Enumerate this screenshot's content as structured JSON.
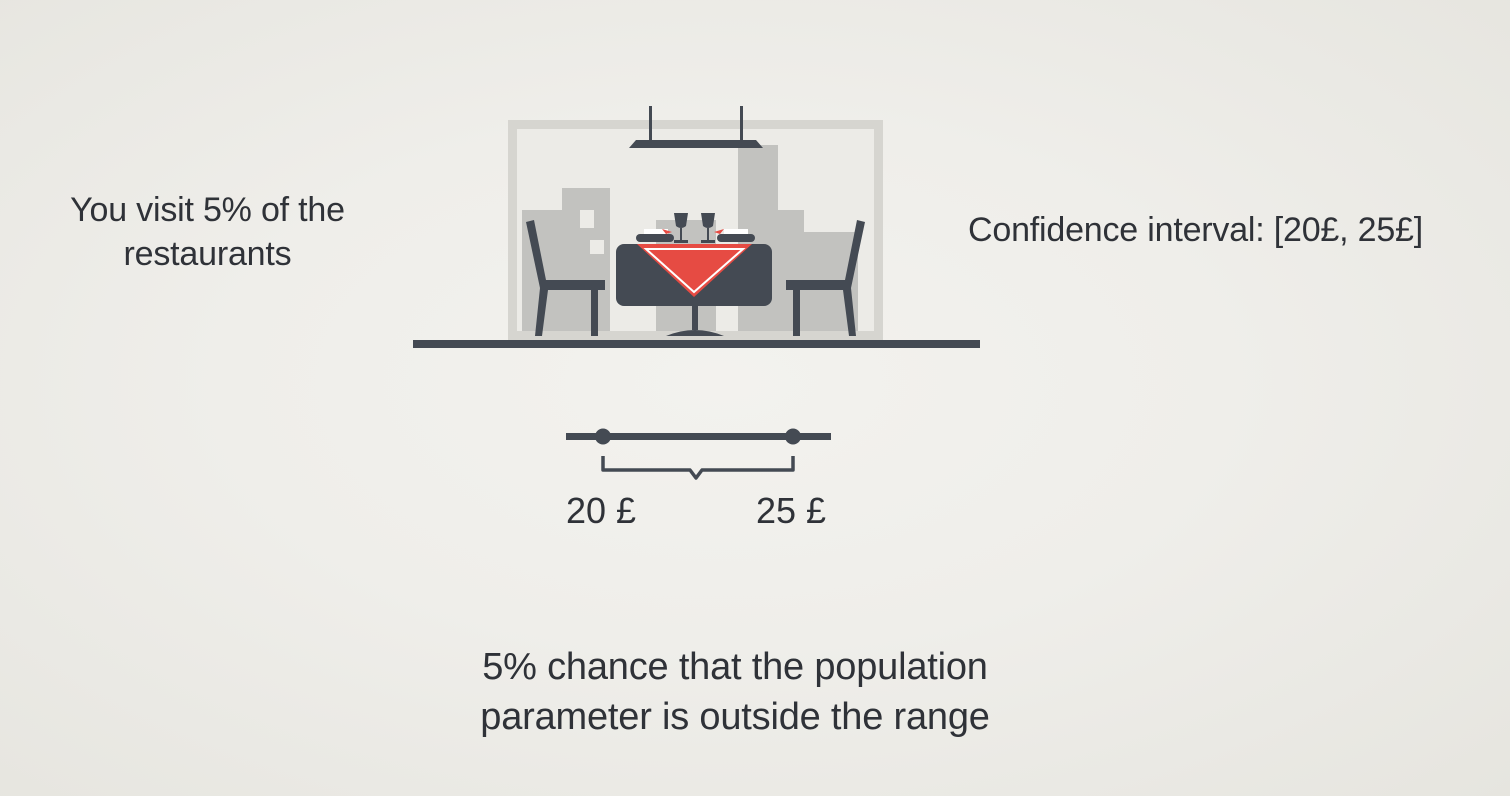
{
  "slide": {
    "left_text": {
      "lines": [
        "You visit 5% of the",
        "restaurants"
      ]
    },
    "right_text": {
      "label": "Confidence interval:",
      "value": "[20£, 25£]"
    },
    "illustration": {
      "icons": [
        "hanging-lamp-icon",
        "restaurant-window-icon",
        "skyline-icon",
        "dining-table-icon",
        "wine-glass-icon",
        "plate-icon",
        "chair-icon",
        "floor-line-icon"
      ]
    },
    "interval": {
      "lower": 20,
      "upper": 25,
      "lower_label": "20 £",
      "upper_label": "25 £"
    },
    "bottom_text": {
      "lines": [
        "5% chance that the population",
        "parameter is outside the range"
      ]
    },
    "colors": {
      "dark": "#444a53",
      "red": "#e64b43",
      "window": "#d6d5d0",
      "building": "#c2c2bf",
      "text": "#2f3238"
    }
  }
}
